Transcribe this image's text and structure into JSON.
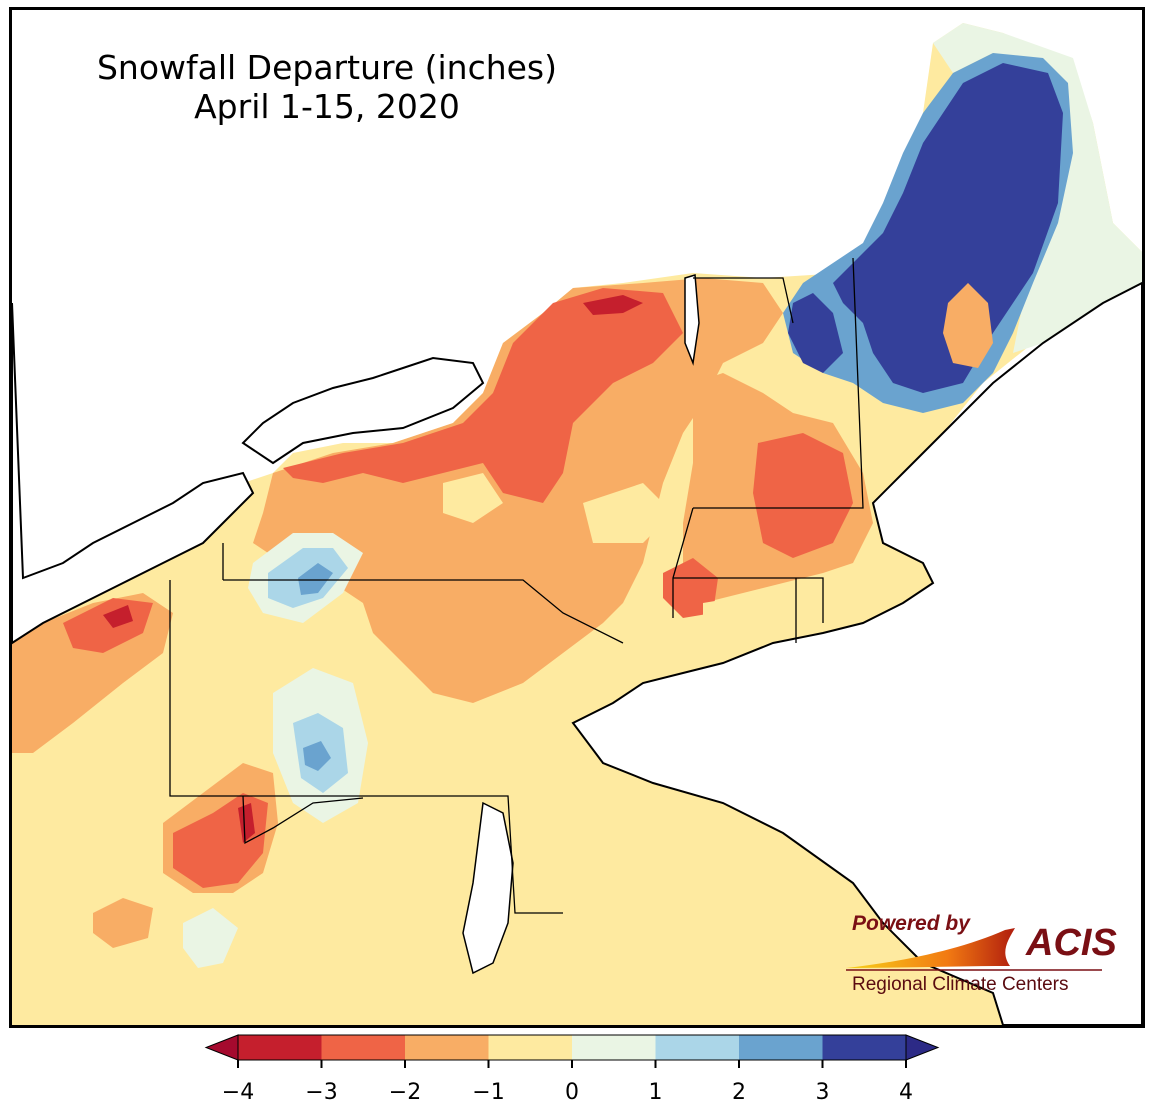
{
  "title": {
    "line1": "Snowfall Departure (inches)",
    "line2": "April 1-15, 2020"
  },
  "legend": {
    "ticks": [
      "−4",
      "−3",
      "−2",
      "−1",
      "0",
      "1",
      "2",
      "3",
      "4"
    ],
    "tick_values": [
      -4,
      -3,
      -2,
      -1,
      0,
      1,
      2,
      3,
      4
    ],
    "bins": [
      {
        "from": -4,
        "to": -3,
        "color": "#c51f2d"
      },
      {
        "from": -3,
        "to": -2,
        "color": "#ef6446"
      },
      {
        "from": -2,
        "to": -1,
        "color": "#f8ad65"
      },
      {
        "from": -1,
        "to": 0,
        "color": "#feeaa0"
      },
      {
        "from": 0,
        "to": 1,
        "color": "#eaf5e4"
      },
      {
        "from": 1,
        "to": 2,
        "color": "#abd6e8"
      },
      {
        "from": 2,
        "to": 3,
        "color": "#6aa3cf"
      },
      {
        "from": 3,
        "to": 4,
        "color": "#34409a"
      }
    ],
    "under_color": "#a50a2e",
    "over_color": "#2c2a86"
  },
  "logo": {
    "powered": "Powered by",
    "brand": "ACIS",
    "tagline": "Regional Climate Centers"
  },
  "colors": {
    "lake": "#ffffff",
    "ocean": "#ffffff",
    "border": "#000000",
    "county": "#9a9a9a"
  }
}
